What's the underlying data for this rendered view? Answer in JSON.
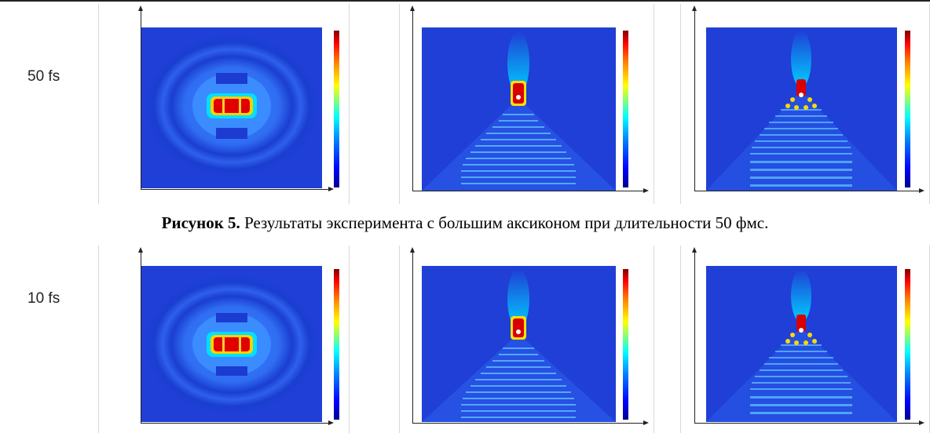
{
  "rows": [
    {
      "label": "50 fs"
    },
    {
      "label": "10 fs"
    }
  ],
  "caption": {
    "bold": "Рисунок 5.",
    "text": " Результаты эксперимента с большим аксиконом при длительности 50 фмс."
  },
  "colors": {
    "background_field": "#1f3fd6",
    "peak": "#c80000",
    "halo": "#00e0ff"
  }
}
